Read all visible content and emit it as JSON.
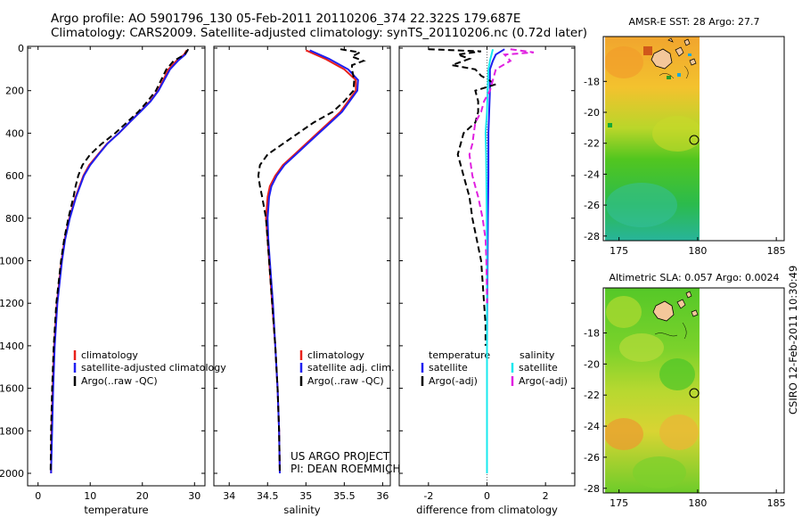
{
  "header": {
    "line1": "Argo profile: AO 5901796_130 05-Feb-2011 20110206_374 22.322S 179.687E",
    "line2": "Climatology: CARS2009. Satellite-adjusted climatology: synTS_20110206.nc (0.72d later)"
  },
  "side_label": "CSIRO 12-Feb-2011 10:30:49",
  "pi_text": {
    "line1": "US ARGO PROJECT",
    "line2": "PI: DEAN ROEMMICH"
  },
  "colors": {
    "climatology": "#e8201a",
    "satellite": "#1f1ff0",
    "argo": "#000000",
    "diff_salinity_satellite": "#17e8ee",
    "diff_salinity_argo": "#e020e0",
    "land": "#f4c79a"
  },
  "depth_axis": {
    "ticks": [
      "0",
      "200",
      "400",
      "600",
      "800",
      "1000",
      "1200",
      "1400",
      "1600",
      "1800",
      "2000"
    ]
  },
  "chart_data": [
    {
      "type": "line",
      "xlabel": "temperature",
      "xlim": [
        -2,
        32
      ],
      "ylim": [
        2050,
        -5
      ],
      "xticks": [
        "0",
        "10",
        "20",
        "30"
      ],
      "legend": [
        "climatology",
        "satellite-adjusted climatology",
        "Argo(..raw -QC)"
      ],
      "series": [
        {
          "key": "climatology",
          "depth": [
            10,
            30,
            60,
            100,
            150,
            200,
            250,
            300,
            350,
            400,
            450,
            500,
            550,
            600,
            700,
            800,
            900,
            1000,
            1200,
            1400,
            1600,
            1800,
            2000
          ],
          "values": [
            28.5,
            28,
            26.5,
            25,
            24,
            23,
            21.5,
            19.5,
            17.5,
            15.5,
            13.2,
            11.5,
            9.8,
            8.7,
            7.2,
            6,
            5.1,
            4.5,
            3.6,
            3.1,
            2.8,
            2.6,
            2.5
          ]
        },
        {
          "key": "satellite",
          "depth": [
            10,
            30,
            60,
            100,
            150,
            200,
            250,
            300,
            350,
            400,
            450,
            500,
            550,
            600,
            700,
            800,
            900,
            1000,
            1200,
            1400,
            1600,
            1800,
            2000
          ],
          "values": [
            28.7,
            28.2,
            26.8,
            25.3,
            24.2,
            23.1,
            21.6,
            19.6,
            17.5,
            15.5,
            13.3,
            11.6,
            10,
            8.8,
            7.3,
            6.1,
            5.2,
            4.6,
            3.7,
            3.2,
            2.9,
            2.7,
            2.5
          ]
        },
        {
          "key": "argo",
          "depth": [
            5,
            30,
            60,
            100,
            150,
            200,
            250,
            300,
            350,
            400,
            450,
            500,
            550,
            600,
            650,
            700,
            800,
            900,
            1000,
            1200,
            1400,
            1600,
            1800,
            2000
          ],
          "values": [
            28.8,
            28.1,
            26,
            24.6,
            23.6,
            22.6,
            21,
            19.2,
            17,
            14.8,
            12.2,
            10,
            8.5,
            7.7,
            7.2,
            6.8,
            5.8,
            5,
            4.4,
            3.5,
            3,
            2.7,
            2.5,
            2.4
          ]
        }
      ]
    },
    {
      "type": "line",
      "xlabel": "salinity",
      "xlim": [
        33.8,
        36.1
      ],
      "ylim": [
        2050,
        -5
      ],
      "xticks": [
        "34",
        "34.5",
        "35",
        "35.5",
        "36"
      ],
      "legend": [
        "climatology",
        "satellite adj. clim.",
        "Argo(..raw -QC)"
      ],
      "series": [
        {
          "key": "climatology",
          "depth": [
            10,
            50,
            100,
            150,
            200,
            250,
            300,
            350,
            400,
            450,
            500,
            550,
            600,
            650,
            700,
            800,
            900,
            1000,
            1200,
            1400,
            1600,
            1800,
            2000
          ],
          "values": [
            35.0,
            35.25,
            35.5,
            35.65,
            35.65,
            35.55,
            35.45,
            35.3,
            35.15,
            35.0,
            34.85,
            34.7,
            34.6,
            34.53,
            34.5,
            34.48,
            34.5,
            34.52,
            34.56,
            34.6,
            34.63,
            34.65,
            34.66
          ]
        },
        {
          "key": "satellite",
          "depth": [
            10,
            50,
            100,
            150,
            200,
            250,
            300,
            350,
            400,
            450,
            500,
            550,
            600,
            650,
            700,
            800,
            900,
            1000,
            1200,
            1400,
            1600,
            1800,
            2000
          ],
          "values": [
            35.05,
            35.3,
            35.55,
            35.68,
            35.67,
            35.57,
            35.47,
            35.32,
            35.17,
            35.02,
            34.87,
            34.72,
            34.62,
            34.55,
            34.52,
            34.5,
            34.51,
            34.53,
            34.57,
            34.6,
            34.63,
            34.65,
            34.66
          ]
        },
        {
          "key": "argo",
          "depth": [
            5,
            20,
            40,
            60,
            80,
            100,
            150,
            200,
            250,
            300,
            350,
            400,
            450,
            500,
            550,
            600,
            650,
            700,
            800,
            900,
            1000,
            1200,
            1400,
            1600,
            1800,
            2000
          ],
          "values": [
            35.45,
            35.7,
            35.6,
            35.75,
            35.6,
            35.6,
            35.63,
            35.62,
            35.5,
            35.35,
            35.1,
            34.9,
            34.7,
            34.5,
            34.4,
            34.38,
            34.4,
            34.43,
            34.48,
            34.5,
            34.52,
            34.56,
            34.6,
            34.63,
            34.65,
            34.66
          ]
        }
      ]
    },
    {
      "type": "line",
      "xlabel": "difference from climatology",
      "xlim": [
        -3,
        3
      ],
      "ylim": [
        2050,
        -5
      ],
      "xticks": [
        "-2",
        "0",
        "2"
      ],
      "legend_titles": [
        "temperature",
        "salinity"
      ],
      "legend": [
        "satellite",
        "Argo(-adj)",
        "satellite",
        "Argo(-adj)"
      ],
      "series": [
        {
          "key": "temp_satellite",
          "depth": [
            5,
            30,
            60,
            100,
            200,
            400,
            600,
            800,
            1000,
            1200,
            1400,
            2000
          ],
          "values": [
            0.6,
            0.3,
            0.2,
            0.1,
            0.1,
            0.05,
            0.05,
            0.03,
            0.02,
            0.01,
            0.0,
            0.0
          ]
        },
        {
          "key": "temp_argo",
          "depth": [
            5,
            15,
            30,
            50,
            80,
            100,
            130,
            170,
            200,
            250,
            300,
            350,
            400,
            450,
            500,
            550,
            600,
            700,
            800,
            900,
            1000,
            1100,
            1200,
            1300,
            1400
          ],
          "values": [
            -2.0,
            -0.2,
            -1.0,
            -0.6,
            -1.2,
            -0.4,
            -0.2,
            0.3,
            -0.4,
            -0.3,
            -0.3,
            -0.4,
            -0.8,
            -0.9,
            -1.0,
            -0.9,
            -0.8,
            -0.6,
            -0.5,
            -0.35,
            -0.2,
            -0.15,
            -0.1,
            -0.05,
            -0.05
          ]
        },
        {
          "key": "sal_satellite",
          "depth": [
            5,
            60,
            100,
            200,
            300,
            400,
            500,
            600,
            800,
            1000,
            1200,
            1400,
            1600,
            1800,
            2000
          ],
          "values": [
            0.2,
            0.1,
            0.05,
            0.02,
            0.0,
            -0.05,
            -0.03,
            -0.02,
            -0.01,
            0.0,
            0.0,
            0.0,
            0.0,
            0.0,
            0.0
          ]
        },
        {
          "key": "sal_argo",
          "depth": [
            5,
            20,
            30,
            60,
            100,
            150,
            200,
            250,
            300,
            350,
            400,
            450,
            500,
            550,
            600,
            700,
            800,
            900,
            1000,
            1100,
            1200
          ],
          "values": [
            0.8,
            1.6,
            0.6,
            0.8,
            0.3,
            0.2,
            0.1,
            -0.1,
            -0.2,
            -0.4,
            -0.45,
            -0.5,
            -0.6,
            -0.55,
            -0.5,
            -0.3,
            -0.15,
            -0.05,
            -0.02,
            -0.01,
            0.0
          ]
        }
      ]
    },
    {
      "type": "heatmap",
      "title": "AMSR-E SST: 28 Argo: 27.7",
      "xlim": [
        174,
        185.5
      ],
      "ylim": [
        -28.3,
        -15.1
      ],
      "xticks": [
        "175",
        "180",
        "185"
      ],
      "yticks": [
        "-18",
        "-20",
        "-22",
        "-24",
        "-26",
        "-28"
      ],
      "data_xlim": [
        174.5,
        180
      ],
      "argo_position": {
        "lon": 179.687,
        "lat": -22.322
      }
    },
    {
      "type": "heatmap",
      "title": "Altimetric SLA: 0.057 Argo: 0.0024",
      "xlim": [
        174,
        185.5
      ],
      "ylim": [
        -28.3,
        -15.1
      ],
      "xticks": [
        "175",
        "180",
        "185"
      ],
      "yticks": [
        "-18",
        "-20",
        "-22",
        "-24",
        "-26",
        "-28"
      ],
      "data_xlim": [
        174.5,
        180
      ],
      "argo_position": {
        "lon": 179.687,
        "lat": -22.322
      }
    }
  ]
}
